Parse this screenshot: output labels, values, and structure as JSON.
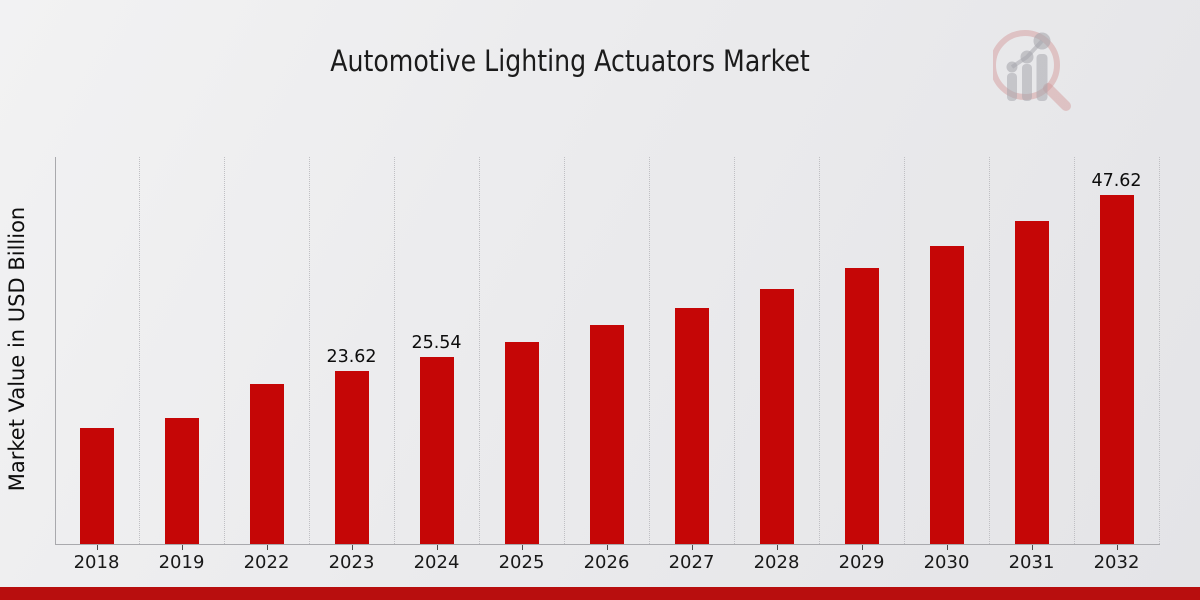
{
  "header": {
    "title": "Automotive Lighting Actuators Market",
    "logo_name": "magnifier-bar-chart-logo"
  },
  "chart_data": {
    "type": "bar",
    "title": "Automotive Lighting Actuators Market",
    "xlabel": "",
    "ylabel": "Market Value in USD Billion",
    "categories": [
      "2018",
      "2019",
      "2022",
      "2023",
      "2024",
      "2025",
      "2026",
      "2027",
      "2028",
      "2029",
      "2030",
      "2031",
      "2032"
    ],
    "values": [
      15.8,
      17.2,
      21.85,
      23.62,
      25.54,
      27.61,
      29.85,
      32.27,
      34.89,
      37.72,
      40.77,
      44.07,
      47.62
    ],
    "shown_value_labels": {
      "2023": "23.62",
      "2024": "25.54",
      "2032": "47.62"
    },
    "bar_color": "#c50606",
    "ylim": [
      0,
      53
    ],
    "grid": "vertical dotted lines between categories",
    "legend_position": "none"
  },
  "footer": {
    "accent_bar_color": "#b80e0e"
  },
  "colors": {
    "background_start": "#f2f2f3",
    "background_end": "#e4e4e7",
    "axis": "#a9a9ad",
    "gridline": "#bfbfc3",
    "text": "#1b1b1b",
    "logo_ring_pink": "rgba(207,132,132,0.45)",
    "logo_gray": "rgba(156,156,164,0.55)"
  }
}
